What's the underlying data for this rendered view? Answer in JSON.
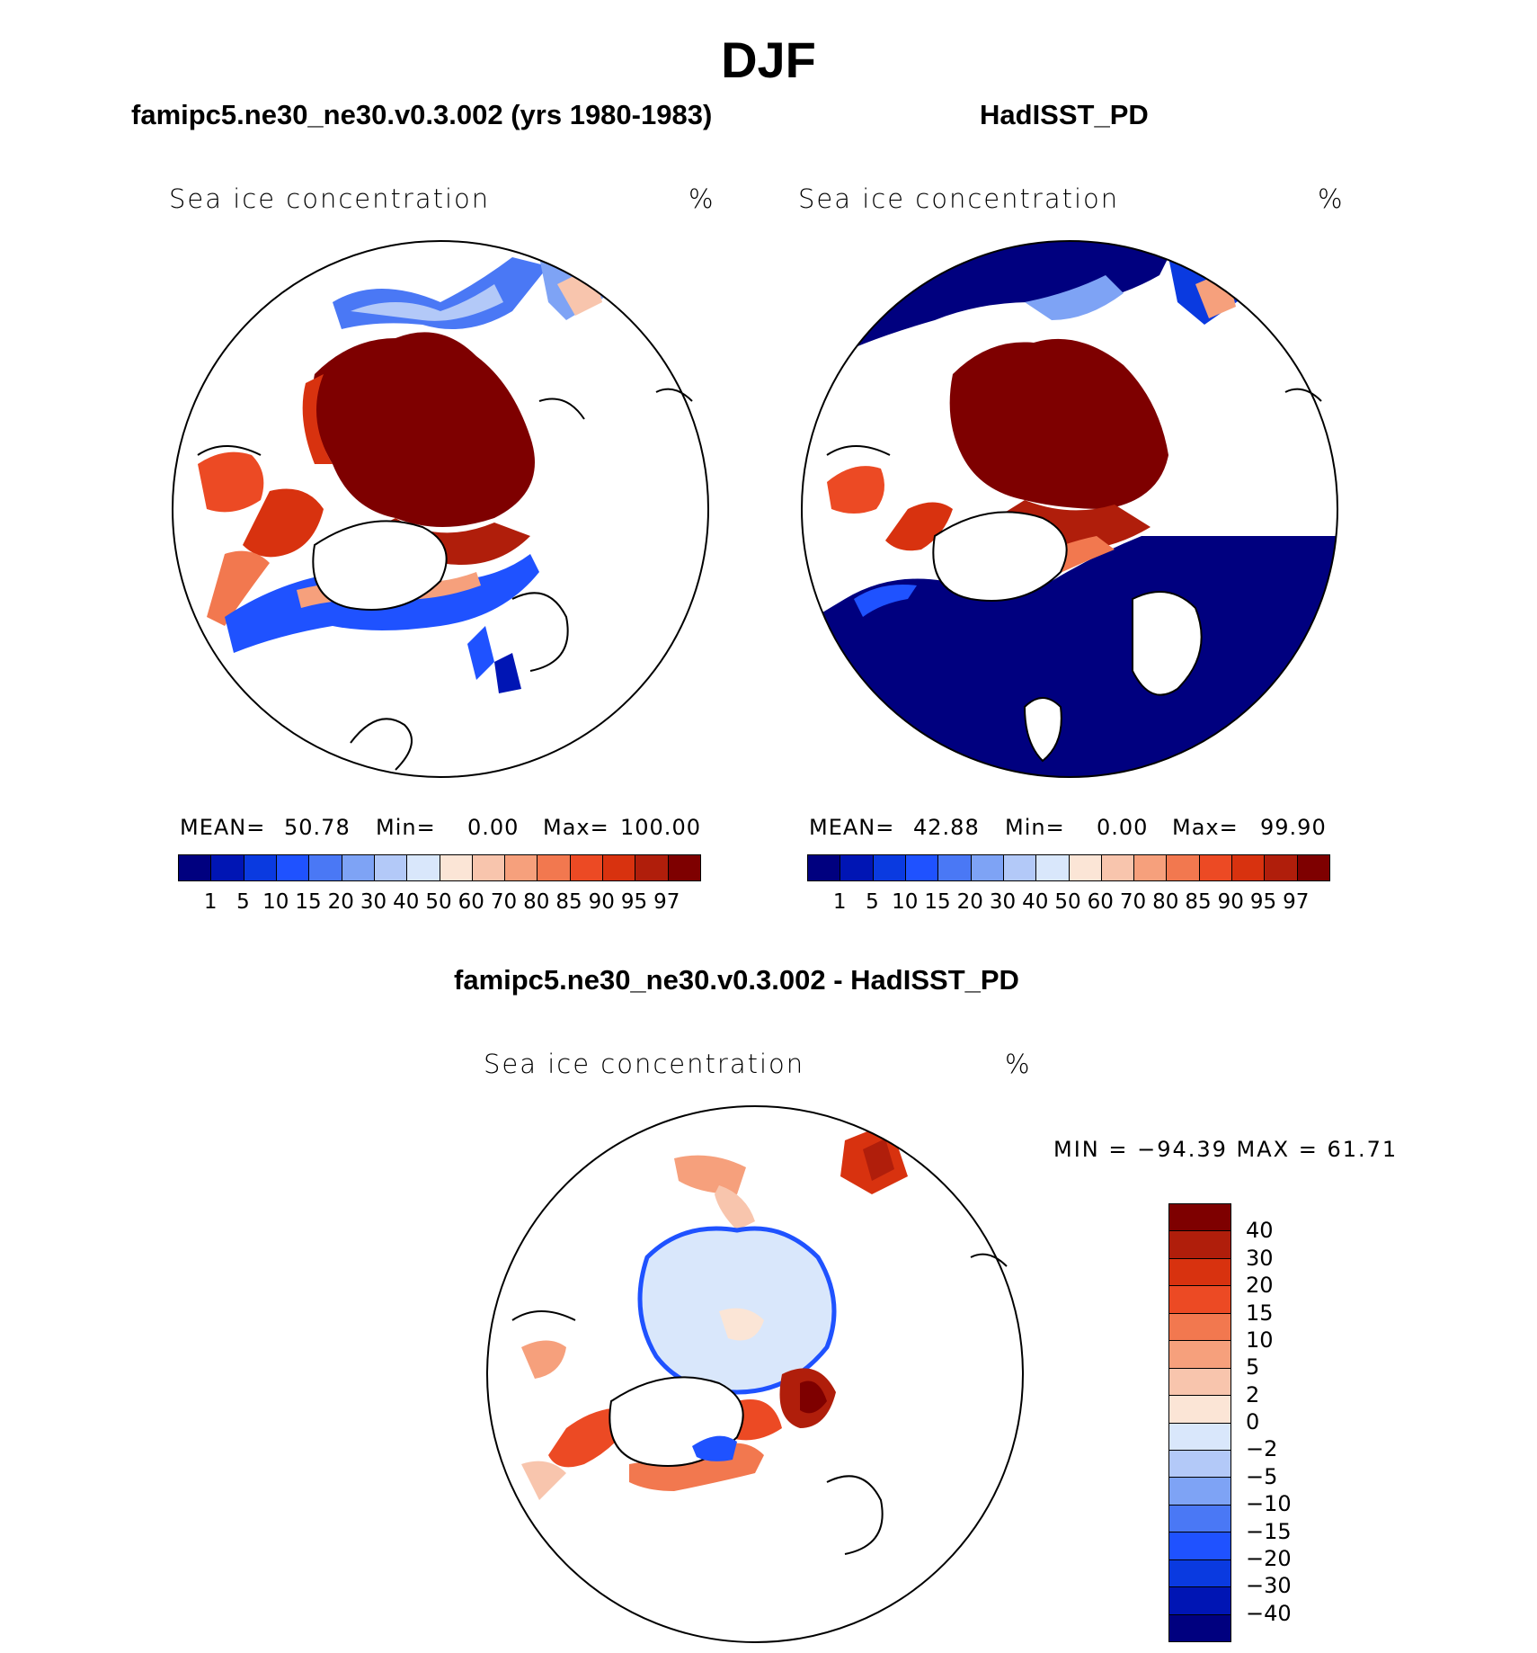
{
  "figure": {
    "title": "DJF"
  },
  "panels": [
    {
      "title": "famipc5.ne30_ne30.v0.3.002 (yrs 1980-1983)",
      "variable": "Sea ice concentration",
      "units": "%",
      "mean_label": "MEAN=",
      "mean": "50.78",
      "min_label": "Min=",
      "min": "0.00",
      "max_label": "Max=",
      "max": "100.00"
    },
    {
      "title": "HadISST_PD",
      "variable": "Sea ice concentration",
      "units": "%",
      "mean_label": "MEAN=",
      "mean": "42.88",
      "min_label": "Min=",
      "min": "0.00",
      "max_label": "Max=",
      "max": "99.90"
    },
    {
      "title": "famipc5.ne30_ne30.v0.3.002 - HadISST_PD",
      "variable": "Sea ice concentration",
      "units": "%",
      "minmax_text": "MIN = −94.39 MAX =   61.71"
    }
  ],
  "colorbar_abs": {
    "ticks": [
      "1",
      "5",
      "10",
      "15",
      "20",
      "30",
      "40",
      "50",
      "60",
      "70",
      "80",
      "85",
      "90",
      "95",
      "97"
    ],
    "colors": [
      "#00007f",
      "#0015b4",
      "#0a3ae0",
      "#1f52ff",
      "#4a78f5",
      "#7ea3f5",
      "#b3c9f8",
      "#d9e7fb",
      "#fbe5d6",
      "#f8c5ad",
      "#f6a07c",
      "#f2784f",
      "#ec4a24",
      "#d8320f",
      "#b01e0b",
      "#7e0000"
    ]
  },
  "colorbar_diff": {
    "ticks": [
      "40",
      "30",
      "20",
      "15",
      "10",
      "5",
      "2",
      "0",
      "−2",
      "−5",
      "−10",
      "−15",
      "−20",
      "−30",
      "−40"
    ],
    "colors": [
      "#7e0000",
      "#b01e0b",
      "#d8320f",
      "#ec4a24",
      "#f2784f",
      "#f6a07c",
      "#f8c5ad",
      "#fbe5d6",
      "#d9e7fb",
      "#b3c9f8",
      "#7ea3f5",
      "#4a78f5",
      "#1f52ff",
      "#0a3ae0",
      "#0015b4",
      "#00007f"
    ]
  }
}
